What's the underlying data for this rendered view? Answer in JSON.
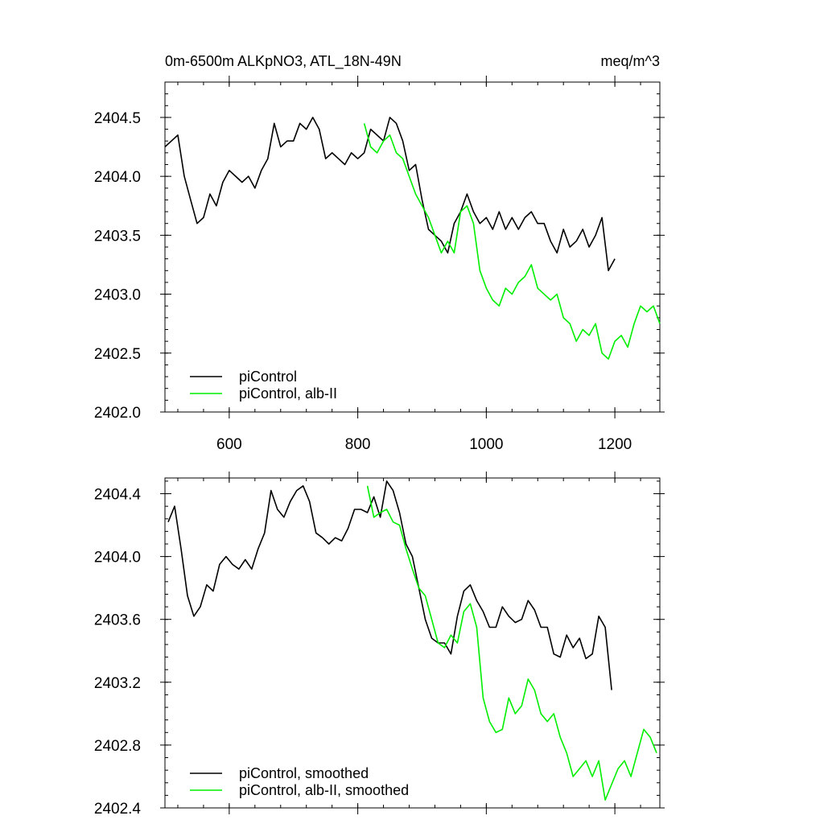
{
  "chart_data": [
    {
      "type": "line",
      "title": "0m-6500m ALKpNO3, ATL_18N-49N",
      "units": "meq/m^3",
      "xlabel": "",
      "ylabel": "",
      "xlim": [
        500,
        1270
      ],
      "ylim": [
        2402.0,
        2404.8
      ],
      "x_ticks": [
        600,
        800,
        1000,
        1200
      ],
      "y_ticks": [
        2402.0,
        2402.5,
        2403.0,
        2403.5,
        2404.0,
        2404.5
      ],
      "y_tick_labels": [
        "2402.0",
        "2402.5",
        "2403.0",
        "2403.5",
        "2404.0",
        "2404.5"
      ],
      "grid": false,
      "legend_position": "bottom-left",
      "series": [
        {
          "name": "piControl",
          "color": "#000000",
          "x": [
            500,
            510,
            520,
            530,
            540,
            550,
            560,
            570,
            580,
            590,
            600,
            610,
            620,
            630,
            640,
            650,
            660,
            670,
            680,
            690,
            700,
            710,
            720,
            730,
            740,
            750,
            760,
            770,
            780,
            790,
            800,
            810,
            820,
            830,
            840,
            850,
            860,
            870,
            880,
            890,
            900,
            910,
            920,
            930,
            940,
            950,
            960,
            970,
            980,
            990,
            1000,
            1010,
            1020,
            1030,
            1040,
            1050,
            1060,
            1070,
            1080,
            1090,
            1100,
            1110,
            1120,
            1130,
            1140,
            1150,
            1160,
            1170,
            1180,
            1190,
            1200
          ],
          "values": [
            2404.25,
            2404.3,
            2404.35,
            2404.0,
            2403.8,
            2403.6,
            2403.65,
            2403.85,
            2403.75,
            2403.95,
            2404.05,
            2404.0,
            2403.95,
            2404.0,
            2403.9,
            2404.05,
            2404.15,
            2404.45,
            2404.25,
            2404.3,
            2404.3,
            2404.45,
            2404.4,
            2404.5,
            2404.4,
            2404.15,
            2404.2,
            2404.15,
            2404.1,
            2404.2,
            2404.15,
            2404.2,
            2404.4,
            2404.35,
            2404.3,
            2404.5,
            2404.45,
            2404.3,
            2404.05,
            2404.1,
            2403.8,
            2403.55,
            2403.5,
            2403.45,
            2403.35,
            2403.6,
            2403.7,
            2403.85,
            2403.7,
            2403.6,
            2403.65,
            2403.55,
            2403.7,
            2403.55,
            2403.65,
            2403.55,
            2403.65,
            2403.7,
            2403.6,
            2403.6,
            2403.45,
            2403.35,
            2403.55,
            2403.4,
            2403.45,
            2403.55,
            2403.4,
            2403.5,
            2403.65,
            2403.2,
            2403.3
          ]
        },
        {
          "name": "piControl, alb-II",
          "color": "#00ee00",
          "x": [
            810,
            820,
            830,
            840,
            850,
            860,
            870,
            880,
            890,
            900,
            910,
            920,
            930,
            940,
            950,
            960,
            970,
            980,
            990,
            1000,
            1010,
            1020,
            1030,
            1040,
            1050,
            1060,
            1070,
            1080,
            1090,
            1100,
            1110,
            1120,
            1130,
            1140,
            1150,
            1160,
            1170,
            1180,
            1190,
            1200,
            1210,
            1220,
            1230,
            1240,
            1250,
            1260,
            1270
          ],
          "values": [
            2404.45,
            2404.25,
            2404.2,
            2404.3,
            2404.35,
            2404.2,
            2404.15,
            2404.0,
            2403.85,
            2403.75,
            2403.65,
            2403.5,
            2403.35,
            2403.45,
            2403.35,
            2403.7,
            2403.75,
            2403.6,
            2403.2,
            2403.05,
            2402.95,
            2402.9,
            2403.05,
            2403.0,
            2403.1,
            2403.15,
            2403.25,
            2403.05,
            2403.0,
            2402.95,
            2403.0,
            2402.8,
            2402.75,
            2402.6,
            2402.7,
            2402.65,
            2402.75,
            2402.5,
            2402.45,
            2402.6,
            2402.65,
            2402.55,
            2402.75,
            2402.9,
            2402.85,
            2402.9,
            2402.75
          ]
        }
      ]
    },
    {
      "type": "line",
      "title": "",
      "xlabel": "",
      "ylabel": "",
      "xlim": [
        500,
        1270
      ],
      "ylim": [
        2402.4,
        2404.5
      ],
      "x_ticks": [
        600,
        800,
        1000,
        1200
      ],
      "y_ticks": [
        2402.4,
        2402.8,
        2403.2,
        2403.6,
        2404.0,
        2404.4
      ],
      "y_tick_labels": [
        "2402.4",
        "2402.8",
        "2403.2",
        "2403.6",
        "2404.0",
        "2404.4"
      ],
      "grid": false,
      "legend_position": "bottom-left",
      "series": [
        {
          "name": "piControl, smoothed",
          "color": "#000000",
          "x": [
            505,
            515,
            525,
            535,
            545,
            555,
            565,
            575,
            585,
            595,
            605,
            615,
            625,
            635,
            645,
            655,
            665,
            675,
            685,
            695,
            705,
            715,
            725,
            735,
            745,
            755,
            765,
            775,
            785,
            795,
            805,
            815,
            825,
            835,
            845,
            855,
            865,
            875,
            885,
            895,
            905,
            915,
            925,
            935,
            945,
            955,
            965,
            975,
            985,
            995,
            1005,
            1015,
            1025,
            1035,
            1045,
            1055,
            1065,
            1075,
            1085,
            1095,
            1105,
            1115,
            1125,
            1135,
            1145,
            1155,
            1165,
            1175,
            1185,
            1195
          ],
          "values": [
            2404.22,
            2404.32,
            2404.05,
            2403.75,
            2403.62,
            2403.68,
            2403.82,
            2403.78,
            2403.95,
            2404.0,
            2403.95,
            2403.92,
            2403.98,
            2403.92,
            2404.05,
            2404.15,
            2404.42,
            2404.3,
            2404.25,
            2404.35,
            2404.42,
            2404.45,
            2404.35,
            2404.15,
            2404.12,
            2404.08,
            2404.12,
            2404.1,
            2404.18,
            2404.3,
            2404.3,
            2404.28,
            2404.38,
            2404.25,
            2404.48,
            2404.42,
            2404.28,
            2404.08,
            2404.0,
            2403.8,
            2403.6,
            2403.48,
            2403.45,
            2403.45,
            2403.38,
            2403.62,
            2403.78,
            2403.82,
            2403.72,
            2403.65,
            2403.55,
            2403.55,
            2403.68,
            2403.62,
            2403.58,
            2403.6,
            2403.72,
            2403.66,
            2403.55,
            2403.55,
            2403.38,
            2403.36,
            2403.5,
            2403.42,
            2403.48,
            2403.35,
            2403.38,
            2403.62,
            2403.55,
            2403.15
          ]
        },
        {
          "name": "piControl, alb-II, smoothed",
          "color": "#00ee00",
          "x": [
            815,
            825,
            835,
            845,
            855,
            865,
            875,
            885,
            895,
            905,
            915,
            925,
            935,
            945,
            955,
            965,
            975,
            985,
            995,
            1005,
            1015,
            1025,
            1035,
            1045,
            1055,
            1065,
            1075,
            1085,
            1095,
            1105,
            1115,
            1125,
            1135,
            1145,
            1155,
            1165,
            1175,
            1185,
            1195,
            1205,
            1215,
            1225,
            1235,
            1245,
            1255,
            1265
          ],
          "values": [
            2404.45,
            2404.25,
            2404.28,
            2404.3,
            2404.22,
            2404.2,
            2404.05,
            2403.92,
            2403.8,
            2403.75,
            2403.6,
            2403.45,
            2403.42,
            2403.5,
            2403.45,
            2403.65,
            2403.7,
            2403.55,
            2403.1,
            2402.95,
            2402.88,
            2402.9,
            2403.1,
            2403.0,
            2403.05,
            2403.22,
            2403.15,
            2403.0,
            2402.95,
            2403.0,
            2402.85,
            2402.75,
            2402.6,
            2402.65,
            2402.7,
            2402.6,
            2402.7,
            2402.45,
            2402.55,
            2402.65,
            2402.7,
            2402.6,
            2402.75,
            2402.9,
            2402.85,
            2402.75
          ]
        }
      ]
    }
  ]
}
